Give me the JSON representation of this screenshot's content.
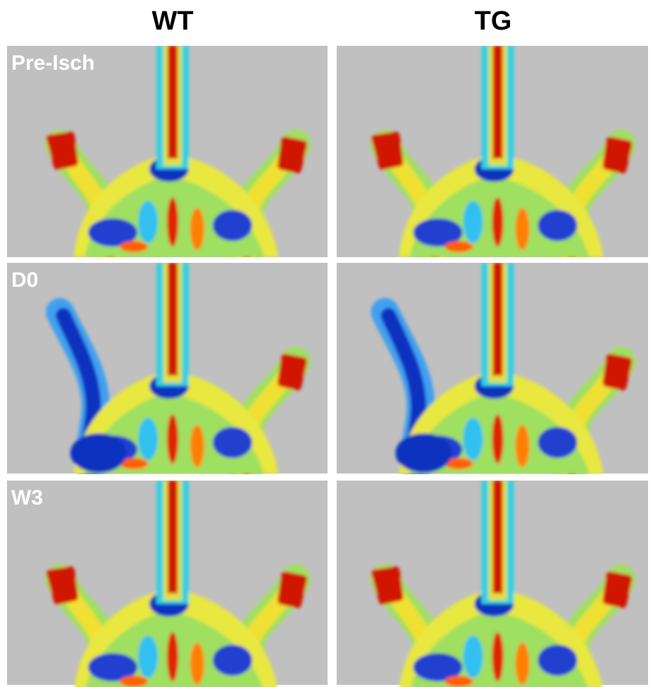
{
  "columns": [
    "WT",
    "TG"
  ],
  "rows": [
    "Pre-Isch",
    "D0",
    "W3"
  ]
}
